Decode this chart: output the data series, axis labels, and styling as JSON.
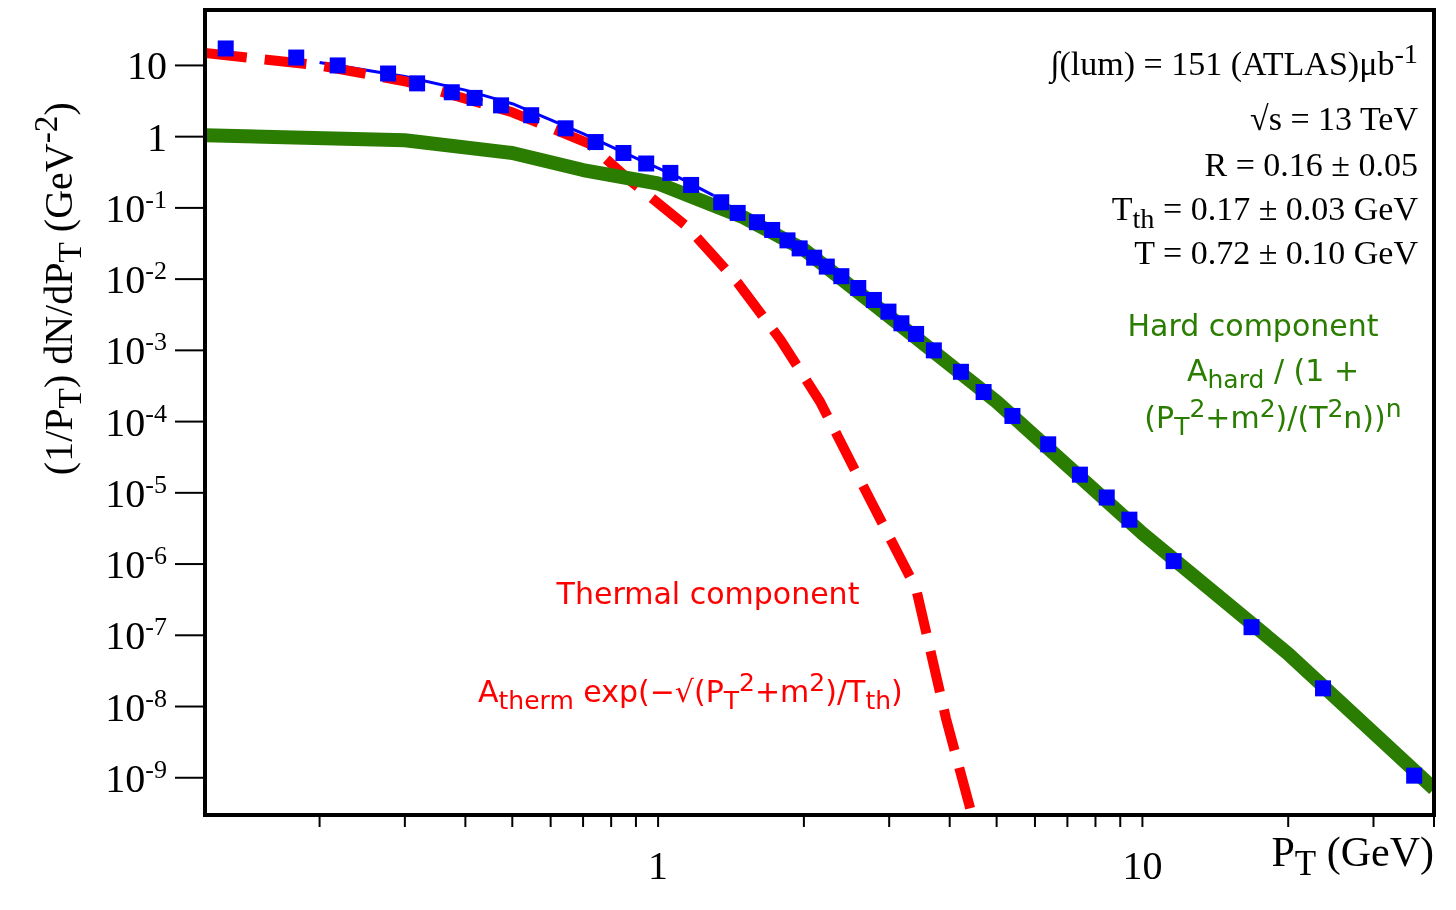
{
  "chart_data": {
    "type": "scatter",
    "xlabel": "P$_{T}$ (GeV)",
    "ylabel": "(1/P$_{T}$) dN/dP$_{T}$ (GeV$^{-2}$)",
    "log": "xy",
    "xlim": [
      0.116,
      40
    ],
    "ylim": [
      3e-10,
      60
    ],
    "xticks": [
      {
        "value": 0.2,
        "label": null
      },
      {
        "value": 0.3,
        "label": null
      },
      {
        "value": 0.4,
        "label": null
      },
      {
        "value": 0.5,
        "label": null
      },
      {
        "value": 0.6,
        "label": null
      },
      {
        "value": 0.7,
        "label": null
      },
      {
        "value": 0.8,
        "label": null
      },
      {
        "value": 0.9,
        "label": null
      },
      1,
      {
        "value": 2,
        "label": null
      },
      {
        "value": 3,
        "label": null
      },
      {
        "value": 4,
        "label": null
      },
      {
        "value": 5,
        "label": null
      },
      {
        "value": 6,
        "label": null
      },
      {
        "value": 7,
        "label": null
      },
      {
        "value": 8,
        "label": null
      },
      {
        "value": 9,
        "label": null
      },
      10,
      {
        "value": 20,
        "label": null
      },
      {
        "value": 30,
        "label": null
      },
      {
        "value": 40,
        "label": null
      }
    ],
    "yticks": [
      {
        "value": 1e-09,
        "label": "10$^{-9}$"
      },
      {
        "value": 1e-08,
        "label": "10$^{-8}$"
      },
      {
        "value": 1e-07,
        "label": "10$^{-7}$"
      },
      {
        "value": 1e-06,
        "label": "10$^{-6}$"
      },
      {
        "value": 1e-05,
        "label": "10$^{-5}$"
      },
      {
        "value": 0.0001,
        "label": "10$^{-4}$"
      },
      {
        "value": 0.001,
        "label": "10$^{-3}$"
      },
      {
        "value": 0.01,
        "label": "10$^{-2}$"
      },
      {
        "value": 0.1,
        "label": "10$^{-1}$"
      },
      1,
      10
    ],
    "series": [
      {
        "marker": "square",
        "color": "#0000ff",
        "x": [
          0.128,
          0.179,
          0.218,
          0.277,
          0.318,
          0.375,
          0.418,
          0.474,
          0.547,
          0.644,
          0.743,
          0.848,
          0.945,
          1.06,
          1.17,
          1.35,
          1.46,
          1.6,
          1.72,
          1.85,
          1.96,
          2.1,
          2.23,
          2.39,
          2.59,
          2.79,
          2.99,
          3.18,
          3.41,
          3.71,
          4.22,
          4.7,
          5.39,
          6.39,
          7.43,
          8.44,
          9.4,
          11.6,
          16.8,
          23.6,
          36.4
        ],
        "values": [
          17.3,
          12.9,
          10,
          7.7,
          5.6,
          4.2,
          3.5,
          2.75,
          2.0,
          1.31,
          0.84,
          0.59,
          0.42,
          0.31,
          0.21,
          0.12,
          0.085,
          0.063,
          0.049,
          0.035,
          0.027,
          0.02,
          0.015,
          0.011,
          0.0075,
          0.0051,
          0.0035,
          0.0024,
          0.0017,
          0.001,
          0.0005,
          0.00026,
          0.00012,
          4.8e-05,
          1.8e-05,
          8.6e-06,
          4.2e-06,
          1.1e-06,
          1.3e-07,
          1.8e-08,
          1.07e-09
        ]
      },
      {
        "type": "line",
        "marker": "none",
        "color": "#0000ff",
        "x": [
          0.2,
          0.3,
          0.4,
          0.5,
          0.7,
          0.9,
          1.1,
          1.3
        ],
        "values": [
          11,
          7,
          4.5,
          2.9,
          1.1,
          0.5,
          0.27,
          0.15
        ]
      },
      {
        "type": "line",
        "marker": "none",
        "line_style": "dashed",
        "color": "#ff0000",
        "x": [
          0.116,
          0.2,
          0.3,
          0.5,
          0.72,
          0.87,
          1.15,
          1.46,
          1.79,
          2.16,
          2.53,
          3.41,
          3.93,
          4.42
        ],
        "values": [
          15,
          10,
          6,
          2.2,
          0.8,
          0.25,
          0.054,
          0.0089,
          0.0014,
          0.00019,
          2.3e-05,
          4.5e-07,
          6.8e-09,
          3.5e-10
        ]
      },
      {
        "type": "line",
        "marker": "none",
        "color": "#2a7d00",
        "x": [
          0.116,
          0.3,
          0.5,
          0.7,
          1,
          1.5,
          2,
          3,
          5,
          10,
          20,
          40
        ],
        "values": [
          1.05,
          0.89,
          0.59,
          0.34,
          0.22,
          0.074,
          0.026,
          0.003,
          0.00019,
          2.7e-06,
          5.5e-08,
          7e-10
        ]
      }
    ],
    "annotations": [
      "∫(lum) = 151 (ATLAS)μb$^{-1}$",
      "√s = 13 TeV",
      "R = 0.16 ± 0.05",
      "T$_{th}$ = 0.17 ± 0.03 GeV",
      "T = 0.72 ± 0.10 GeV",
      "Hard component",
      "A$_{hard}$ / (1 + (P$_{T}$$^{2}$+m$^{2}$)/(T$^{2}$n))$^{n}$",
      "Thermal component",
      "A$_{therm}$ exp(−√(P$_{T}$$^{2}$+m$^{2}$)/T$_{th}$)"
    ]
  }
}
